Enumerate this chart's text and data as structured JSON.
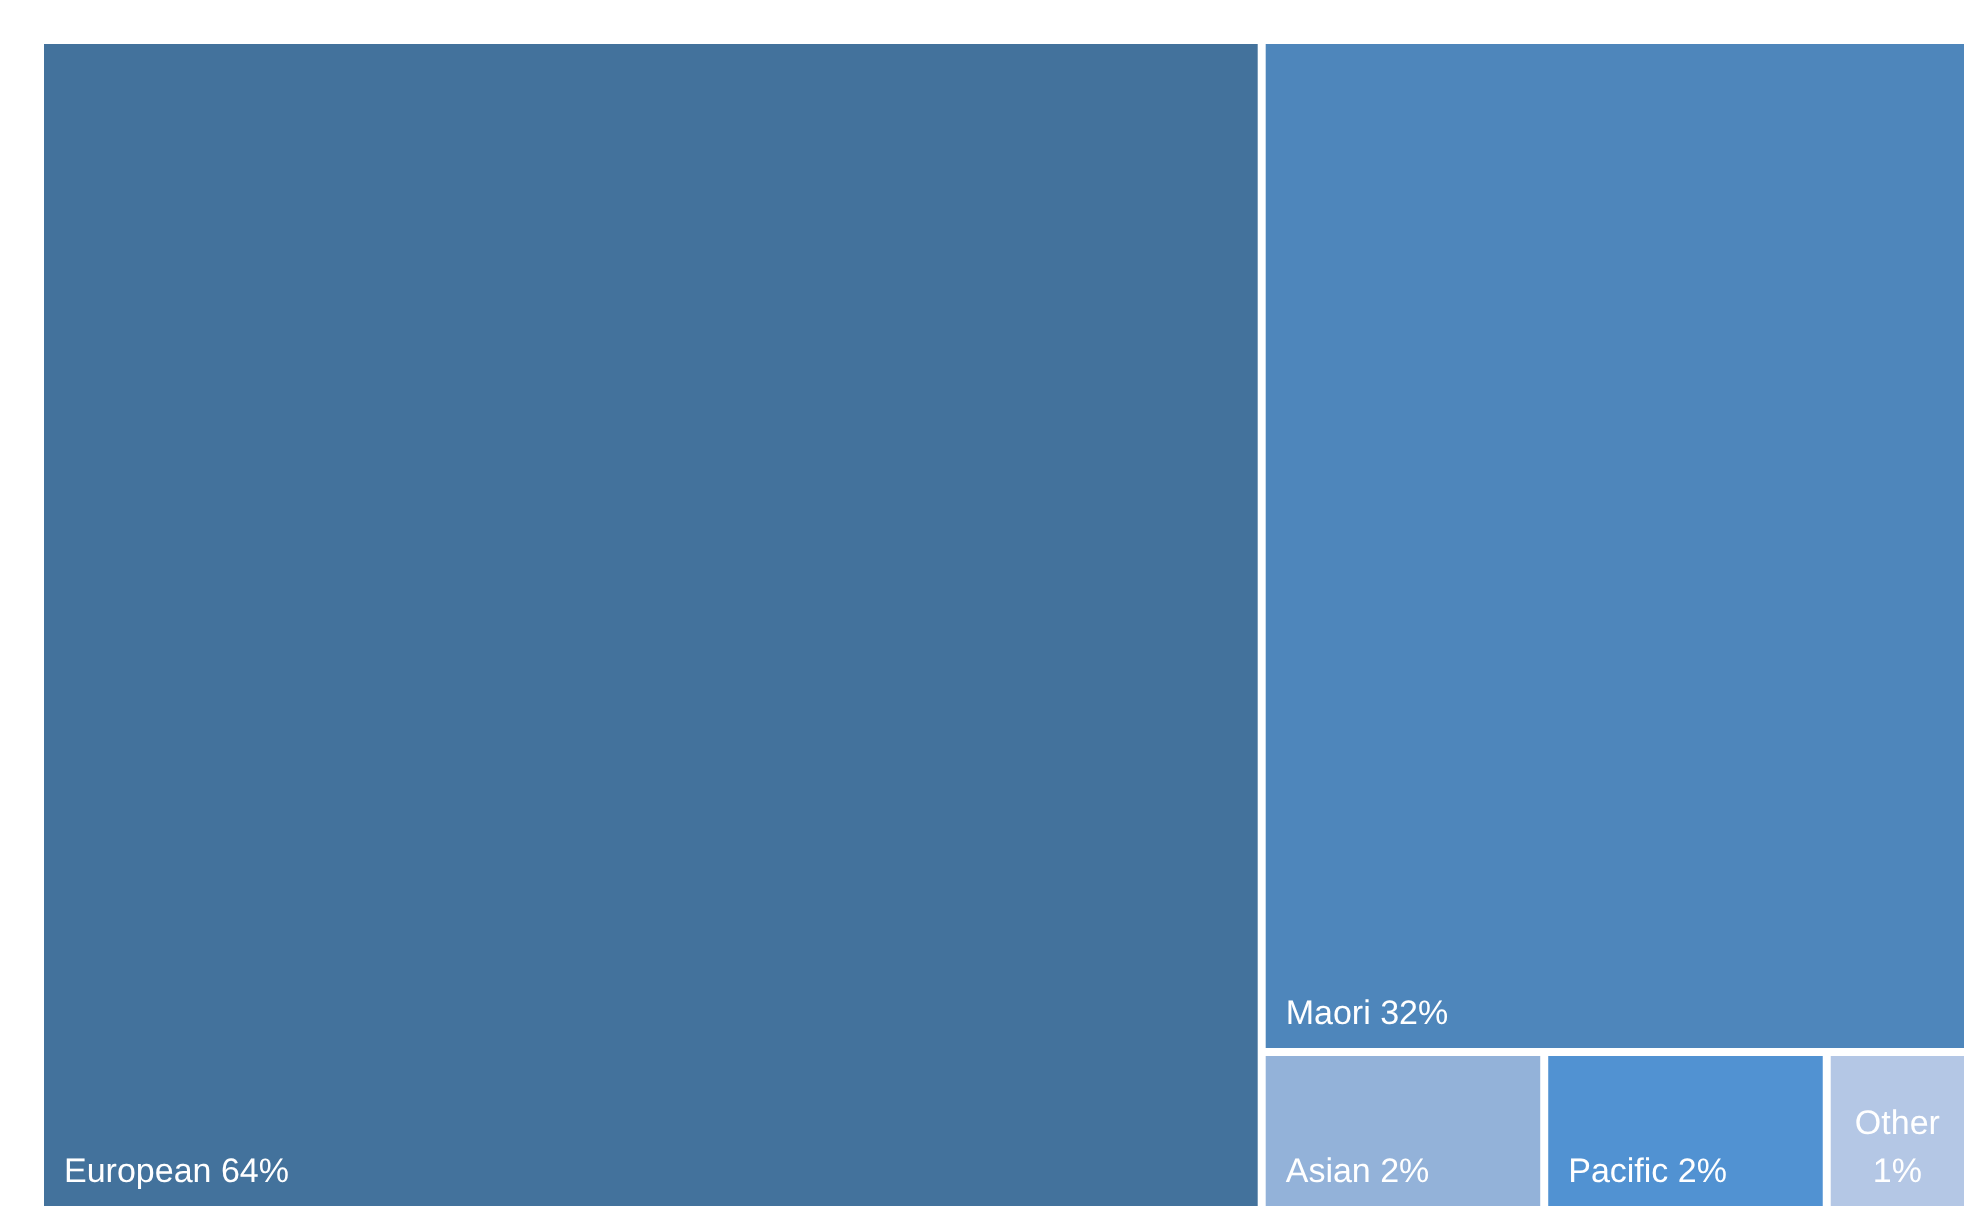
{
  "chart_data": {
    "type": "other",
    "categories": [
      "European",
      "Maori",
      "Asian",
      "Pacific",
      "Other"
    ],
    "values": [
      64,
      32,
      2,
      2,
      1
    ],
    "value_labels": [
      "64%",
      "32%",
      "2%",
      "2%",
      "1%"
    ],
    "colors": [
      "#43729c",
      "#4e86bb",
      "#93b2d9",
      "#5192d2",
      "#b4c7e5"
    ]
  }
}
